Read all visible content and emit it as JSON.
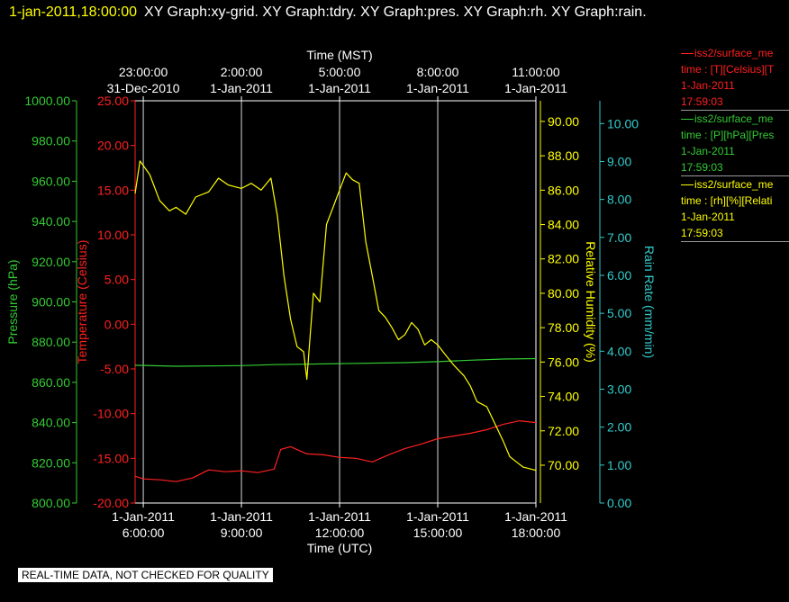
{
  "header": {
    "timestamp": "1-jan-2011,18:00:00",
    "graphs": "XY Graph:xy-grid.  XY Graph:tdry.  XY Graph:pres.  XY Graph:rh.  XY Graph:rain."
  },
  "notice": "REAL-TIME DATA, NOT CHECKED FOR QUALITY",
  "legend": [
    {
      "color": "#ff2020",
      "lines": [
        "iss2/surface_me",
        "time : [T][Celsius][T",
        "1-Jan-2011",
        "17:59:03"
      ]
    },
    {
      "color": "#33cc33",
      "lines": [
        "iss2/surface_me",
        "time : [P][hPa][Pres",
        "1-Jan-2011",
        "17:59:03"
      ]
    },
    {
      "color": "#ffff00",
      "lines": [
        "iss2/surface_me",
        "time : [rh][%][Relati",
        "1-Jan-2011",
        "17:59:03"
      ]
    }
  ],
  "chart_data": {
    "type": "line",
    "x_top_label": "Time (MST)",
    "x_bottom_label": "Time (UTC)",
    "x_range_utc_hours": [
      5.75,
      18.0
    ],
    "grid_vertical": true,
    "colors": {
      "temperature": "#ff2020",
      "pressure": "#33cc33",
      "rh": "#ffff00",
      "rain": "#33cccc",
      "grid": "#ffffff",
      "frame": "#ffffff"
    },
    "top_ticks": [
      {
        "time": "23:00:00",
        "date": "31-Dec-2010",
        "utc_hour": 6
      },
      {
        "time": "2:00:00",
        "date": "1-Jan-2011",
        "utc_hour": 9
      },
      {
        "time": "5:00:00",
        "date": "1-Jan-2011",
        "utc_hour": 12
      },
      {
        "time": "8:00:00",
        "date": "1-Jan-2011",
        "utc_hour": 15
      },
      {
        "time": "11:00:00",
        "date": "1-Jan-2011",
        "utc_hour": 18
      }
    ],
    "bottom_ticks": [
      {
        "date": "1-Jan-2011",
        "time": "6:00:00",
        "utc_hour": 6
      },
      {
        "date": "1-Jan-2011",
        "time": "9:00:00",
        "utc_hour": 9
      },
      {
        "date": "1-Jan-2011",
        "time": "12:00:00",
        "utc_hour": 12
      },
      {
        "date": "1-Jan-2011",
        "time": "15:00:00",
        "utc_hour": 15
      },
      {
        "date": "1-Jan-2011",
        "time": "18:00:00",
        "utc_hour": 18
      }
    ],
    "axes": {
      "pressure": {
        "label": "Pressure (hPa)",
        "range": [
          800,
          1000
        ],
        "ticks": [
          "800.00",
          "820.00",
          "840.00",
          "860.00",
          "880.00",
          "900.00",
          "920.00",
          "940.00",
          "960.00",
          "980.00",
          "1000.00"
        ]
      },
      "temperature": {
        "label": "Temperature (Celsius)",
        "range": [
          -20,
          25
        ],
        "ticks": [
          "-20.00",
          "-15.00",
          "-10.00",
          "-5.00",
          "0.00",
          "5.00",
          "10.00",
          "15.00",
          "20.00",
          "25.00"
        ]
      },
      "rh": {
        "label": "Relative Humidity (%)",
        "range": [
          67.8,
          91.2
        ],
        "ticks": [
          "70.00",
          "72.00",
          "74.00",
          "76.00",
          "78.00",
          "80.00",
          "82.00",
          "84.00",
          "86.00",
          "88.00",
          "90.00"
        ]
      },
      "rain": {
        "label": "Rain Rate (mm/min)",
        "range": [
          0,
          10.6
        ],
        "ticks": [
          "0.00",
          "1.00",
          "2.00",
          "3.00",
          "4.00",
          "5.00",
          "6.00",
          "7.00",
          "8.00",
          "9.00",
          "10.00"
        ]
      }
    },
    "series": [
      {
        "name": "T",
        "axis": "temperature",
        "x": [
          5.75,
          6.0,
          6.5,
          7.0,
          7.5,
          8.0,
          8.5,
          9.0,
          9.5,
          10.0,
          10.2,
          10.5,
          11.0,
          11.5,
          12.0,
          12.5,
          13.0,
          13.5,
          14.0,
          14.5,
          15.0,
          15.5,
          16.0,
          16.5,
          17.0,
          17.5,
          18.0
        ],
        "y": [
          -17.0,
          -17.3,
          -17.4,
          -17.6,
          -17.2,
          -16.3,
          -16.5,
          -16.4,
          -16.6,
          -16.2,
          -14.0,
          -13.7,
          -14.5,
          -14.6,
          -14.9,
          -15.0,
          -15.4,
          -14.6,
          -13.9,
          -13.4,
          -12.8,
          -12.5,
          -12.2,
          -11.8,
          -11.2,
          -10.8,
          -11.0
        ]
      },
      {
        "name": "P",
        "axis": "pressure",
        "x": [
          5.75,
          7.0,
          9.0,
          10.0,
          12.0,
          14.0,
          15.0,
          16.0,
          17.0,
          18.0
        ],
        "y": [
          868.5,
          868.0,
          868.3,
          868.8,
          869.3,
          869.8,
          870.3,
          871.0,
          871.6,
          871.8
        ]
      },
      {
        "name": "rh",
        "axis": "rh",
        "x": [
          5.75,
          5.9,
          6.2,
          6.5,
          6.8,
          7.0,
          7.3,
          7.6,
          8.0,
          8.3,
          8.6,
          9.0,
          9.3,
          9.6,
          9.9,
          10.1,
          10.3,
          10.5,
          10.7,
          10.9,
          11.0,
          11.1,
          11.2,
          11.4,
          11.6,
          11.8,
          12.0,
          12.2,
          12.4,
          12.6,
          12.8,
          13.0,
          13.2,
          13.4,
          13.6,
          13.8,
          14.0,
          14.2,
          14.4,
          14.6,
          14.8,
          15.0,
          15.2,
          15.5,
          15.8,
          16.0,
          16.2,
          16.5,
          16.8,
          17.0,
          17.2,
          17.4,
          17.6,
          17.8,
          18.0
        ],
        "y": [
          85.8,
          87.7,
          86.9,
          85.4,
          84.8,
          85.0,
          84.6,
          85.6,
          85.9,
          86.7,
          86.3,
          86.1,
          86.4,
          86.0,
          86.7,
          84.5,
          81.0,
          78.5,
          76.9,
          76.6,
          75.0,
          77.5,
          80.0,
          79.5,
          84.0,
          85.0,
          86.0,
          87.0,
          86.6,
          86.4,
          83.0,
          81.0,
          79.0,
          78.6,
          78.0,
          77.3,
          77.6,
          78.3,
          77.9,
          77.0,
          77.3,
          77.0,
          76.5,
          75.8,
          75.2,
          74.6,
          73.7,
          73.4,
          72.2,
          71.4,
          70.5,
          70.2,
          69.9,
          69.8,
          69.7
        ]
      },
      {
        "name": "rain",
        "axis": "rain",
        "x": [],
        "y": []
      }
    ]
  }
}
